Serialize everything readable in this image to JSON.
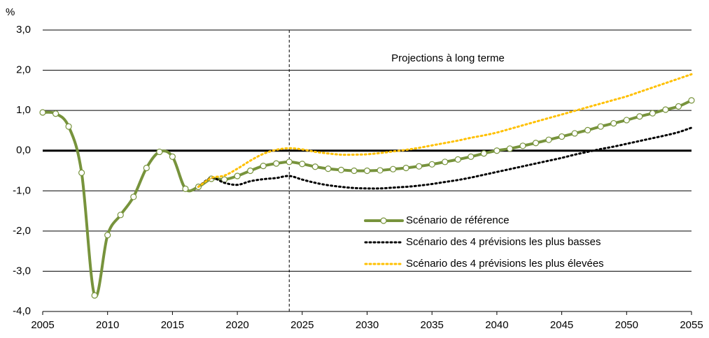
{
  "chart_data": {
    "type": "line",
    "unit_label": "%",
    "annotation": "Projections à long terme",
    "divider_x": 2024,
    "x": [
      2005,
      2006,
      2007,
      2008,
      2009,
      2010,
      2011,
      2012,
      2013,
      2014,
      2015,
      2016,
      2017,
      2018,
      2019,
      2020,
      2021,
      2022,
      2023,
      2024,
      2025,
      2026,
      2027,
      2028,
      2029,
      2030,
      2031,
      2032,
      2033,
      2034,
      2035,
      2036,
      2037,
      2038,
      2039,
      2040,
      2041,
      2042,
      2043,
      2044,
      2045,
      2046,
      2047,
      2048,
      2049,
      2050,
      2051,
      2052,
      2053,
      2054,
      2055
    ],
    "xlim": [
      2005,
      2055
    ],
    "xticks": [
      2005,
      2010,
      2015,
      2020,
      2025,
      2030,
      2035,
      2040,
      2045,
      2050,
      2055
    ],
    "ylim": [
      -4,
      3
    ],
    "yticks": [
      {
        "value": 3,
        "label": "3,0"
      },
      {
        "value": 2,
        "label": "2,0"
      },
      {
        "value": 1,
        "label": "1,0"
      },
      {
        "value": 0,
        "label": "0,0"
      },
      {
        "value": -1,
        "label": "-1,0"
      },
      {
        "value": -2,
        "label": "-2,0"
      },
      {
        "value": -3,
        "label": "-3,0"
      },
      {
        "value": -4,
        "label": "-4,0"
      }
    ],
    "grid": true,
    "zero_line": true,
    "legend": "bottom-right",
    "series": [
      {
        "name": "Scénario de référence",
        "color": "#77933c",
        "style": "solid",
        "markers": true,
        "values": [
          0.95,
          0.92,
          0.6,
          -0.55,
          -3.6,
          -2.1,
          -1.6,
          -1.15,
          -0.43,
          -0.03,
          -0.15,
          -0.95,
          -0.9,
          -0.7,
          -0.72,
          -0.63,
          -0.5,
          -0.38,
          -0.32,
          -0.28,
          -0.33,
          -0.4,
          -0.45,
          -0.48,
          -0.5,
          -0.5,
          -0.49,
          -0.46,
          -0.43,
          -0.39,
          -0.34,
          -0.28,
          -0.22,
          -0.15,
          -0.07,
          0.0,
          0.05,
          0.12,
          0.19,
          0.27,
          0.35,
          0.43,
          0.51,
          0.6,
          0.68,
          0.76,
          0.85,
          0.93,
          1.02,
          1.1,
          1.25
        ]
      },
      {
        "name": "Scénario des 4 prévisions les plus basses",
        "color": "#000000",
        "style": "dotted",
        "markers": false,
        "values": [
          null,
          null,
          null,
          null,
          null,
          null,
          null,
          null,
          null,
          null,
          null,
          null,
          -0.9,
          -0.68,
          -0.8,
          -0.85,
          -0.76,
          -0.71,
          -0.68,
          -0.63,
          -0.72,
          -0.8,
          -0.86,
          -0.9,
          -0.93,
          -0.94,
          -0.94,
          -0.92,
          -0.9,
          -0.87,
          -0.83,
          -0.78,
          -0.73,
          -0.67,
          -0.6,
          -0.53,
          -0.46,
          -0.39,
          -0.32,
          -0.25,
          -0.18,
          -0.1,
          -0.03,
          0.04,
          0.1,
          0.17,
          0.24,
          0.31,
          0.38,
          0.46,
          0.57
        ]
      },
      {
        "name": "Scénario des 4 prévisions les plus élevées",
        "color": "#ffc000",
        "style": "dotted",
        "markers": false,
        "values": [
          null,
          null,
          null,
          null,
          null,
          null,
          null,
          null,
          null,
          null,
          null,
          null,
          -0.9,
          -0.68,
          -0.62,
          -0.45,
          -0.25,
          -0.08,
          0.02,
          0.06,
          0.03,
          -0.03,
          -0.07,
          -0.1,
          -0.1,
          -0.09,
          -0.06,
          -0.02,
          0.02,
          0.07,
          0.13,
          0.19,
          0.25,
          0.32,
          0.38,
          0.45,
          0.54,
          0.63,
          0.72,
          0.81,
          0.9,
          0.99,
          1.08,
          1.17,
          1.26,
          1.35,
          1.46,
          1.57,
          1.68,
          1.79,
          1.9
        ]
      }
    ]
  }
}
